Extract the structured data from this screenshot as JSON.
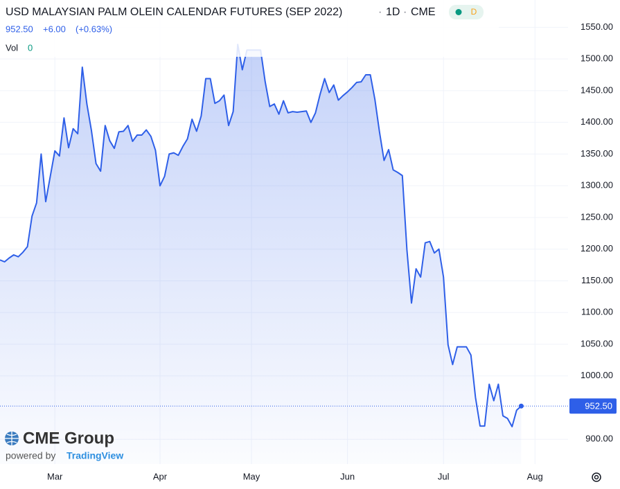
{
  "chart_data": {
    "type": "area",
    "title": "USD MALAYSIAN PALM OLEIN CALENDAR FUTURES (SEP 2022)",
    "interval": "1D",
    "exchange": "CME",
    "badge": "D",
    "last_price": {
      "value": 952.5,
      "label": "952.50"
    },
    "change": "+6.00",
    "change_pct": "(+0.63%)",
    "volume_label": "Vol",
    "volume": 0,
    "logo": "CME Group",
    "powered_by": "powered by",
    "brand": "TradingView",
    "color": "#2e5fe8",
    "grid": true,
    "ylim": [
      861,
      1593
    ],
    "yticks": [
      {
        "value": 900,
        "label": "900.00"
      },
      {
        "value": 1000,
        "label": "1000.00"
      },
      {
        "value": 1050,
        "label": "1050.00"
      },
      {
        "value": 1100,
        "label": "1100.00"
      },
      {
        "value": 1150,
        "label": "1150.00"
      },
      {
        "value": 1200,
        "label": "1200.00"
      },
      {
        "value": 1250,
        "label": "1250.00"
      },
      {
        "value": 1300,
        "label": "1300.00"
      },
      {
        "value": 1350,
        "label": "1350.00"
      },
      {
        "value": 1400,
        "label": "1400.00"
      },
      {
        "value": 1450,
        "label": "1450.00"
      },
      {
        "value": 1500,
        "label": "1500.00"
      },
      {
        "value": 1550,
        "label": "1550.00"
      }
    ],
    "categories": [
      null,
      null,
      null,
      null,
      null,
      null,
      null,
      null,
      null,
      null,
      null,
      null,
      "Mar",
      null,
      null,
      null,
      null,
      null,
      null,
      null,
      null,
      null,
      null,
      null,
      null,
      null,
      null,
      null,
      null,
      null,
      null,
      null,
      null,
      null,
      null,
      "Apr",
      null,
      null,
      null,
      null,
      null,
      null,
      null,
      null,
      null,
      null,
      null,
      null,
      null,
      null,
      null,
      null,
      null,
      null,
      null,
      "May",
      null,
      null,
      null,
      null,
      null,
      null,
      null,
      null,
      null,
      null,
      null,
      null,
      null,
      null,
      null,
      null,
      null,
      null,
      null,
      null,
      "Jun",
      null,
      null,
      null,
      null,
      null,
      null,
      null,
      null,
      null,
      null,
      null,
      null,
      null,
      null,
      null,
      null,
      null,
      null,
      null,
      null,
      "Jul",
      null,
      null,
      null,
      null,
      null,
      null,
      null,
      null,
      null,
      null,
      null,
      null,
      null,
      null,
      null,
      null,
      null,
      null,
      null,
      "Aug"
    ],
    "values": [
      1183,
      1180,
      1186,
      1191,
      1188,
      1195,
      1204,
      1252,
      1273,
      1350,
      1275,
      1315,
      1355,
      1347,
      1407,
      1360,
      1390,
      1382,
      1487,
      1429,
      1387,
      1335,
      1323,
      1395,
      1371,
      1359,
      1385,
      1386,
      1395,
      1370,
      1380,
      1380,
      1388,
      1378,
      1356,
      1300,
      1315,
      1350,
      1352,
      1348,
      1362,
      1374,
      1405,
      1386,
      1410,
      1469,
      1469,
      1430,
      1434,
      1443,
      1395,
      1417,
      1523,
      1483,
      1514,
      1514,
      1514,
      1514,
      1464,
      1425,
      1429,
      1413,
      1434,
      1415,
      1417,
      1416,
      1417,
      1418,
      1400,
      1415,
      1444,
      1469,
      1447,
      1459,
      1435,
      1442,
      1448,
      1455,
      1463,
      1464,
      1475,
      1475,
      1436,
      1385,
      1340,
      1357,
      1325,
      1321,
      1316,
      1199,
      1115,
      1169,
      1156,
      1210,
      1212,
      1194,
      1200,
      1156,
      1049,
      1018,
      1046,
      1046,
      1046,
      1033,
      966,
      921,
      921,
      987,
      961,
      987,
      937,
      933,
      920,
      946,
      952.5,
      null,
      null,
      null
    ]
  }
}
